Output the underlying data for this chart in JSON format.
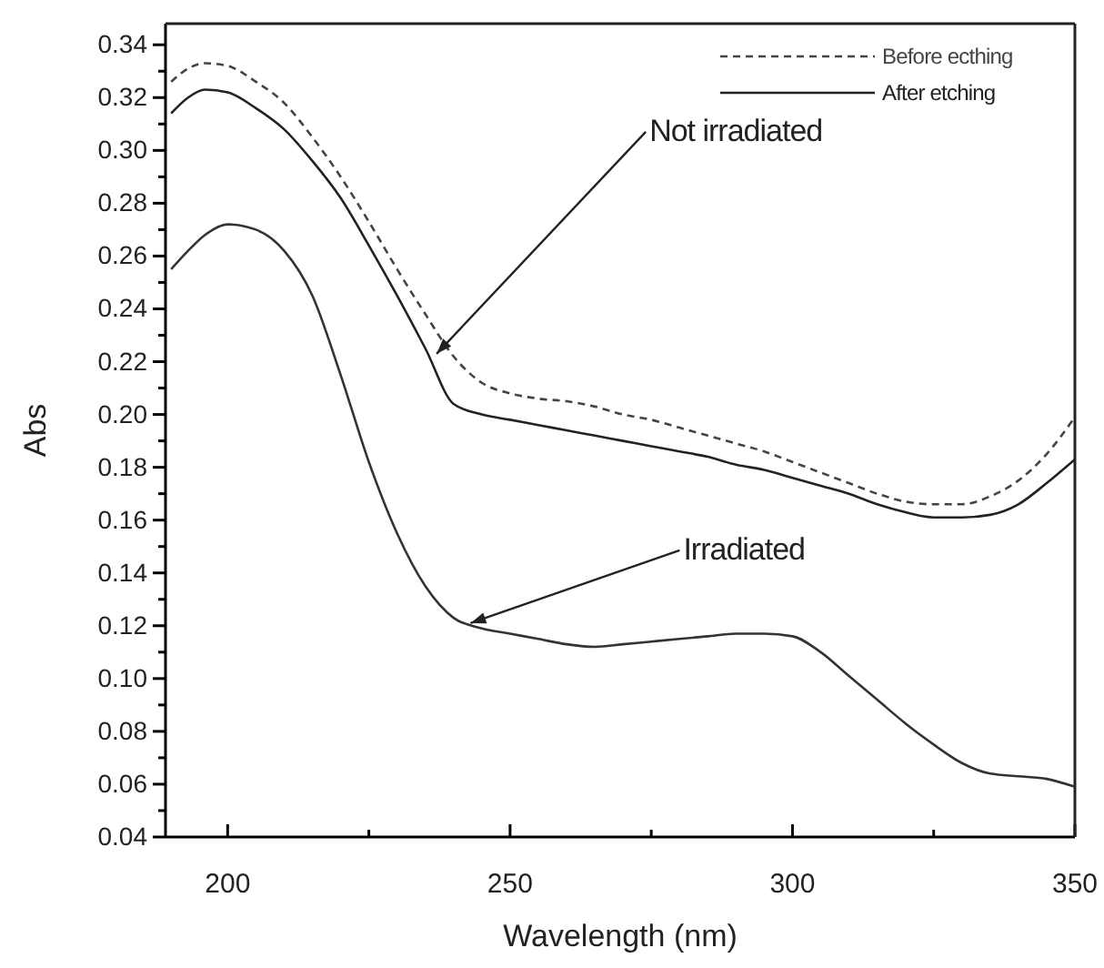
{
  "chart_data": {
    "type": "line",
    "xlabel": "Wavelength (nm)",
    "ylabel": "Abs",
    "x": [
      190,
      193,
      196,
      200,
      205,
      210,
      215,
      220,
      225,
      230,
      235,
      240,
      245,
      250,
      255,
      260,
      265,
      270,
      275,
      280,
      285,
      290,
      295,
      300,
      305,
      310,
      315,
      320,
      325,
      330,
      335,
      340,
      345,
      350
    ],
    "series": [
      {
        "name": "Before ecthing",
        "color": "#444444",
        "line_style": "dashed",
        "values": [
          0.326,
          0.331,
          0.333,
          0.332,
          0.326,
          0.318,
          0.305,
          0.29,
          0.273,
          0.255,
          0.238,
          0.222,
          0.212,
          0.208,
          0.206,
          0.205,
          0.203,
          0.2,
          0.198,
          0.195,
          0.192,
          0.189,
          0.186,
          0.182,
          0.178,
          0.174,
          0.17,
          0.167,
          0.166,
          0.166,
          0.169,
          0.175,
          0.185,
          0.199
        ]
      },
      {
        "name": "After etching",
        "color": "#222222",
        "line_style": "solid",
        "values": [
          0.314,
          0.32,
          0.323,
          0.322,
          0.316,
          0.308,
          0.296,
          0.282,
          0.264,
          0.245,
          0.225,
          0.204,
          0.2,
          0.198,
          0.196,
          0.194,
          0.192,
          0.19,
          0.188,
          0.186,
          0.184,
          0.181,
          0.179,
          0.176,
          0.173,
          0.17,
          0.166,
          0.163,
          0.161,
          0.161,
          0.162,
          0.166,
          0.174,
          0.183
        ]
      },
      {
        "color": "#333333",
        "line_style": "solid",
        "values": [
          0.255,
          0.262,
          0.268,
          0.272,
          0.27,
          0.262,
          0.245,
          0.215,
          0.182,
          0.155,
          0.135,
          0.123,
          0.119,
          0.117,
          0.115,
          0.113,
          0.112,
          0.113,
          0.114,
          0.115,
          0.116,
          0.117,
          0.117,
          0.116,
          0.11,
          0.101,
          0.092,
          0.083,
          0.075,
          0.068,
          0.064,
          0.063,
          0.062,
          0.059
        ]
      }
    ],
    "xlim": [
      189,
      350
    ],
    "xticks": [
      200,
      {
        "value": 225,
        "label": null
      },
      250,
      {
        "value": 275,
        "label": null
      },
      300,
      {
        "value": 325,
        "label": null
      },
      350
    ],
    "ylim": [
      0.04,
      0.348
    ],
    "yticks": [
      0.04,
      {
        "value": 0.05,
        "label": null
      },
      0.06,
      {
        "value": 0.07,
        "label": null
      },
      0.08,
      {
        "value": 0.09,
        "label": null
      },
      {
        "value": 0.1,
        "label": "0.10"
      },
      {
        "value": 0.11,
        "label": null
      },
      0.12,
      {
        "value": 0.13,
        "label": null
      },
      0.14,
      {
        "value": 0.15,
        "label": null
      },
      0.16,
      {
        "value": 0.17,
        "label": null
      },
      0.18,
      {
        "value": 0.19,
        "label": null
      },
      {
        "value": 0.2,
        "label": "0.20"
      },
      {
        "value": 0.21,
        "label": null
      },
      0.22,
      {
        "value": 0.23,
        "label": null
      },
      0.24,
      {
        "value": 0.25,
        "label": null
      },
      0.26,
      {
        "value": 0.27,
        "label": null
      },
      0.28,
      {
        "value": 0.29,
        "label": null
      },
      {
        "value": 0.3,
        "label": "0.30"
      },
      {
        "value": 0.31,
        "label": null
      },
      0.32,
      {
        "value": 0.33,
        "label": null
      },
      0.34
    ],
    "annotations": [
      {
        "text": "Not irradiated",
        "x": 237,
        "y": 0.223
      },
      {
        "text": "Irradiated",
        "x": 243,
        "y": 0.121
      }
    ],
    "legend": "top right",
    "grid": false,
    "marker": "none"
  }
}
